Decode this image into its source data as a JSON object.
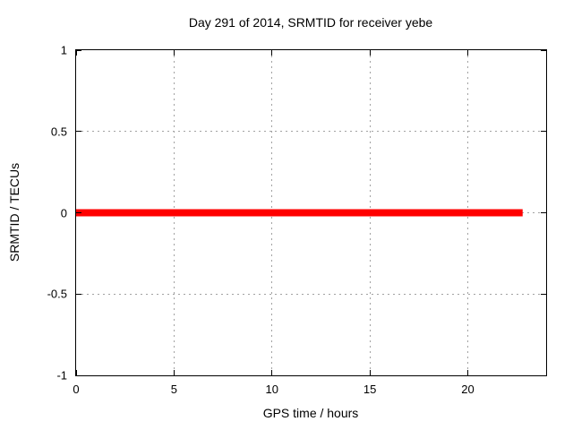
{
  "chart_data": {
    "type": "line",
    "title": "Day 291 of 2014, SRMTID for receiver yebe",
    "xlabel": "GPS time / hours",
    "ylabel": "SRMTID / TECUs",
    "xlim": [
      0,
      24
    ],
    "ylim": [
      -1,
      1
    ],
    "xticks": [
      {
        "value": 0,
        "label": "0"
      },
      {
        "value": 5,
        "label": "5"
      },
      {
        "value": 10,
        "label": "10"
      },
      {
        "value": 15,
        "label": "15"
      },
      {
        "value": 20,
        "label": "20"
      }
    ],
    "yticks": [
      {
        "value": 1,
        "label": "1"
      },
      {
        "value": 0.5,
        "label": "0.5"
      },
      {
        "value": 0,
        "label": "0"
      },
      {
        "value": -0.5,
        "label": "-0.5"
      },
      {
        "value": -1,
        "label": "-1"
      }
    ],
    "grid": true,
    "legend": "none",
    "series": [
      {
        "name": "SRMTID",
        "description": "constant zero value across observed GPS time span",
        "color": "#ff0000",
        "linewidth": 8,
        "points": [
          {
            "x": 0,
            "y": 0
          },
          {
            "x": 22.8,
            "y": 0
          }
        ]
      }
    ]
  },
  "colors": {
    "background": "#ffffff",
    "axis": "#000000",
    "grid": "#a2a2a2",
    "text": "#000000",
    "series": "#ff0000"
  }
}
